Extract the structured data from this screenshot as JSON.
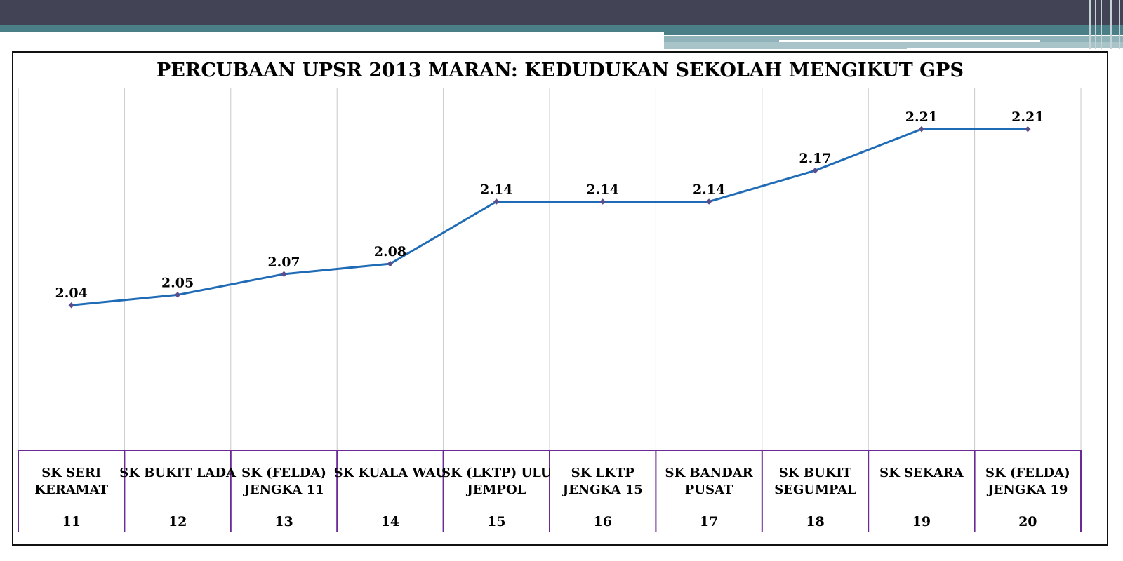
{
  "chart_data": {
    "type": "line",
    "title": "PERCUBAAN UPSR 2013 MARAN: KEDUDUKAN SEKOLAH MENGIKUT GPS",
    "categories": [
      [
        "SK SERI",
        "KERAMAT"
      ],
      [
        "SK BUKIT LADA"
      ],
      [
        "SK (FELDA)",
        "JENGKA 11"
      ],
      [
        "SK KUALA WAU"
      ],
      [
        "SK (LKTP) ULU",
        "JEMPOL"
      ],
      [
        "SK LKTP",
        "JENGKA 15"
      ],
      [
        "SK BANDAR",
        "PUSAT"
      ],
      [
        "SK BUKIT",
        "SEGUMPAL"
      ],
      [
        "SK SEKARA"
      ],
      [
        "SK (FELDA)",
        "JENGKA 19"
      ]
    ],
    "ranks": [
      "11",
      "12",
      "13",
      "14",
      "15",
      "16",
      "17",
      "18",
      "19",
      "20"
    ],
    "values": [
      2.04,
      2.05,
      2.07,
      2.08,
      2.14,
      2.14,
      2.14,
      2.17,
      2.21,
      2.21
    ],
    "data_labels": [
      "2.04",
      "2.05",
      "2.07",
      "2.08",
      "2.14",
      "2.14",
      "2.14",
      "2.17",
      "2.21",
      "2.21"
    ],
    "ylim": [
      1.9,
      2.25
    ],
    "grid": "vertical",
    "line_color": "#1f6bb5",
    "marker_color": "#5a4e8e",
    "table_border_color": "#6a2a96"
  }
}
